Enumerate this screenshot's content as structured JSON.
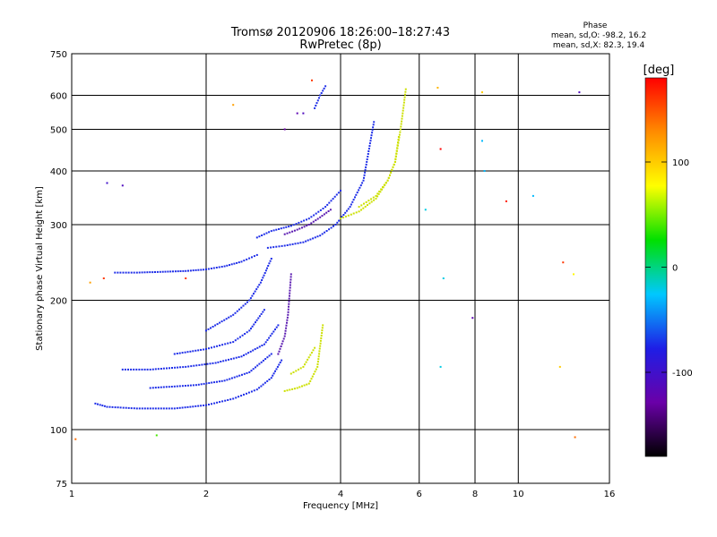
{
  "chart_data": {
    "type": "scatter",
    "title": "Tromsø 20120906 18:26:00–18:27:43",
    "subtitle": "RwPretec (8p)",
    "xlabel": "Frequency [MHz]",
    "ylabel": "Stationary phase Virtual Height [km]",
    "x_scale": "log",
    "y_scale": "log",
    "xlim": [
      1,
      16
    ],
    "ylim": [
      75,
      750
    ],
    "x_ticks": [
      1,
      2,
      4,
      6,
      8,
      10,
      16
    ],
    "y_ticks": [
      75,
      100,
      200,
      300,
      400,
      500,
      600,
      750
    ],
    "grid": true,
    "stats": {
      "heading": "Phase",
      "line_o": "mean, sd,O: -98.2, 16.2",
      "line_x": "mean, sd,X: 82.3, 19.4"
    },
    "colorbar": {
      "label": "[deg]",
      "range": [
        -180,
        180
      ],
      "ticks": [
        100,
        0,
        -100
      ],
      "tick_labels": [
        "100",
        "0",
        "-100"
      ],
      "colormap": [
        "#000000",
        "#6a00a8",
        "#1e1ee6",
        "#00c8ff",
        "#00e000",
        "#ffff00",
        "#ff8c00",
        "#ff0000"
      ]
    },
    "series": [
      {
        "mode": "O",
        "phase": -100,
        "color": "#1e2ee8",
        "curves": [
          {
            "x": [
              1.13,
              1.2,
              1.4,
              1.7,
              2.0,
              2.3,
              2.6,
              2.8,
              2.95
            ],
            "y": [
              115,
              113,
              112,
              112,
              114,
              118,
              124,
              132,
              145
            ]
          },
          {
            "x": [
              1.3,
              1.5,
              1.8,
              2.1,
              2.4,
              2.7,
              2.9
            ],
            "y": [
              138,
              138,
              140,
              143,
              148,
              158,
              175
            ]
          },
          {
            "x": [
              1.5,
              1.9,
              2.2,
              2.5,
              2.8
            ],
            "y": [
              125,
              127,
              130,
              136,
              150
            ]
          },
          {
            "x": [
              1.7,
              2.0,
              2.3,
              2.5,
              2.7
            ],
            "y": [
              150,
              154,
              160,
              170,
              190
            ]
          },
          {
            "x": [
              2.0,
              2.3,
              2.5,
              2.65,
              2.8
            ],
            "y": [
              170,
              185,
              200,
              220,
              250
            ]
          },
          {
            "x": [
              1.25,
              1.4,
              1.6,
              1.8,
              2.0,
              2.2,
              2.4,
              2.6
            ],
            "y": [
              232,
              232,
              233,
              234,
              236,
              240,
              246,
              255
            ]
          },
          {
            "x": [
              2.75,
              3.0,
              3.3,
              3.6,
              3.9,
              4.2,
              4.5,
              4.75
            ],
            "y": [
              265,
              268,
              273,
              283,
              300,
              330,
              380,
              520
            ]
          },
          {
            "x": [
              2.6,
              2.8,
              3.1,
              3.4,
              3.7,
              4.0
            ],
            "y": [
              280,
              290,
              298,
              310,
              330,
              360
            ]
          },
          {
            "x": [
              3.5,
              3.6,
              3.7
            ],
            "y": [
              560,
              600,
              630
            ]
          }
        ]
      },
      {
        "mode": "O-purple",
        "phase": -140,
        "color": "#5a1ab0",
        "curves": [
          {
            "x": [
              2.9,
              3.0,
              3.05,
              3.1
            ],
            "y": [
              150,
              165,
              185,
              230
            ]
          },
          {
            "x": [
              3.0,
              3.2,
              3.4,
              3.6,
              3.8
            ],
            "y": [
              285,
              292,
              300,
              312,
              325
            ]
          }
        ]
      },
      {
        "mode": "X",
        "phase": 100,
        "color": "#cce000",
        "curves": [
          {
            "x": [
              3.0,
              3.2,
              3.4,
              3.55,
              3.65
            ],
            "y": [
              123,
              125,
              128,
              140,
              175
            ]
          },
          {
            "x": [
              3.1,
              3.3,
              3.5
            ],
            "y": [
              135,
              140,
              155
            ]
          },
          {
            "x": [
              4.0,
              4.4,
              4.8,
              5.1,
              5.3,
              5.4
            ],
            "y": [
              310,
              322,
              345,
              380,
              420,
              480
            ]
          },
          {
            "x": [
              4.4,
              4.8,
              5.1,
              5.3,
              5.45,
              5.6
            ],
            "y": [
              330,
              350,
              380,
              420,
              500,
              620
            ]
          }
        ]
      },
      {
        "mode": "scatter",
        "points": [
          {
            "x": 1.02,
            "y": 95,
            "phase": 140
          },
          {
            "x": 1.1,
            "y": 220,
            "phase": 120
          },
          {
            "x": 1.18,
            "y": 225,
            "phase": 160
          },
          {
            "x": 1.2,
            "y": 375,
            "phase": -100
          },
          {
            "x": 1.3,
            "y": 370,
            "phase": -110
          },
          {
            "x": 1.55,
            "y": 97,
            "phase": 40
          },
          {
            "x": 1.8,
            "y": 225,
            "phase": 160
          },
          {
            "x": 2.3,
            "y": 570,
            "phase": 120
          },
          {
            "x": 3.0,
            "y": 500,
            "phase": -130
          },
          {
            "x": 3.2,
            "y": 545,
            "phase": -120
          },
          {
            "x": 3.3,
            "y": 545,
            "phase": -110
          },
          {
            "x": 3.45,
            "y": 650,
            "phase": 160
          },
          {
            "x": 6.2,
            "y": 325,
            "phase": -20
          },
          {
            "x": 6.6,
            "y": 625,
            "phase": 110
          },
          {
            "x": 6.7,
            "y": 450,
            "phase": 180
          },
          {
            "x": 6.8,
            "y": 225,
            "phase": -20
          },
          {
            "x": 6.7,
            "y": 140,
            "phase": -20
          },
          {
            "x": 7.9,
            "y": 182,
            "phase": -120
          },
          {
            "x": 8.3,
            "y": 610,
            "phase": 100
          },
          {
            "x": 8.3,
            "y": 470,
            "phase": -30
          },
          {
            "x": 8.4,
            "y": 400,
            "phase": -30
          },
          {
            "x": 9.4,
            "y": 340,
            "phase": 170
          },
          {
            "x": 10.8,
            "y": 350,
            "phase": -30
          },
          {
            "x": 12.6,
            "y": 245,
            "phase": 160
          },
          {
            "x": 13.3,
            "y": 230,
            "phase": 80
          },
          {
            "x": 12.4,
            "y": 140,
            "phase": 100
          },
          {
            "x": 13.4,
            "y": 96,
            "phase": 140
          },
          {
            "x": 13.7,
            "y": 610,
            "phase": -110
          }
        ]
      }
    ]
  }
}
